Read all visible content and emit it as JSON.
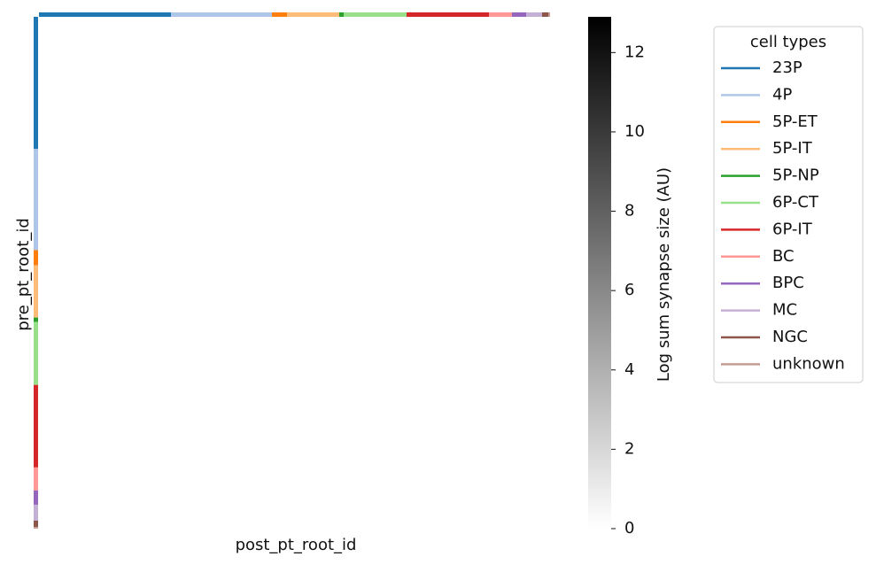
{
  "chart_data": {
    "type": "heatmap",
    "x_label": "post_pt_root_id",
    "y_label": "pre_pt_root_id",
    "colorbar_label": "Log sum synapse size (AU)",
    "colorbar_lim": [
      0,
      12.9
    ],
    "colorbar_ticks": [
      0,
      2,
      4,
      6,
      8,
      10,
      12
    ],
    "colormap": [
      "#ffffff",
      "#000000"
    ],
    "legend_title": "cell types",
    "cell_types": [
      {
        "name": "23P",
        "color": "#1f77b4",
        "size": 149
      },
      {
        "name": "4P",
        "color": "#aec7e8",
        "size": 114
      },
      {
        "name": "5P-ET",
        "color": "#ff7f0e",
        "size": 17
      },
      {
        "name": "5P-IT",
        "color": "#ffbb78",
        "size": 59
      },
      {
        "name": "5P-NP",
        "color": "#2ca02c",
        "size": 5
      },
      {
        "name": "6P-CT",
        "color": "#98df8a",
        "size": 71
      },
      {
        "name": "6P-IT",
        "color": "#d62728",
        "size": 93
      },
      {
        "name": "BC",
        "color": "#ff9896",
        "size": 26
      },
      {
        "name": "BPC",
        "color": "#9467bd",
        "size": 16
      },
      {
        "name": "MC",
        "color": "#c5b0d5",
        "size": 18
      },
      {
        "name": "NGC",
        "color": "#8c564b",
        "size": 7
      },
      {
        "name": "unknown",
        "color": "#c49c94",
        "size": 2
      }
    ]
  }
}
